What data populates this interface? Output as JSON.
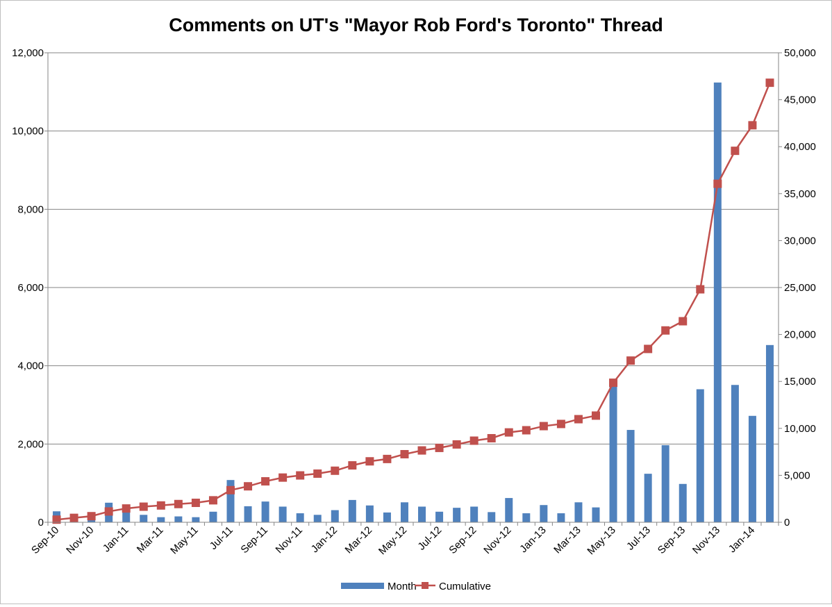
{
  "chart_data": {
    "type": "bar+line",
    "title": "Comments on UT's \"Mayor Rob Ford's Toronto\" Thread",
    "categories": [
      "Sep-10",
      "Oct-10",
      "Nov-10",
      "Dec-10",
      "Jan-11",
      "Feb-11",
      "Mar-11",
      "Apr-11",
      "May-11",
      "Jun-11",
      "Jul-11",
      "Aug-11",
      "Sep-11",
      "Oct-11",
      "Nov-11",
      "Dec-11",
      "Jan-12",
      "Feb-12",
      "Mar-12",
      "Apr-12",
      "May-12",
      "Jun-12",
      "Jul-12",
      "Aug-12",
      "Sep-12",
      "Oct-12",
      "Nov-12",
      "Dec-12",
      "Jan-13",
      "Feb-13",
      "Mar-13",
      "Apr-13",
      "May-13",
      "Jun-13",
      "Jul-13",
      "Aug-13",
      "Sep-13",
      "Oct-13",
      "Nov-13",
      "Dec-13",
      "Jan-14",
      "Feb-14"
    ],
    "tick_labels": [
      "Sep-10",
      "Nov-10",
      "Jan-11",
      "Mar-11",
      "May-11",
      "Jul-11",
      "Sep-11",
      "Nov-11",
      "Jan-12",
      "Mar-12",
      "May-12",
      "Jul-12",
      "Sep-12",
      "Nov-12",
      "Jan-13",
      "Mar-13",
      "May-13",
      "Jul-13",
      "Sep-13",
      "Nov-13",
      "Jan-14"
    ],
    "series": [
      {
        "name": "Month",
        "type": "bar",
        "axis": "left",
        "color": "#4F81BD",
        "values": [
          280,
          190,
          180,
          500,
          320,
          190,
          130,
          150,
          130,
          270,
          1080,
          410,
          530,
          400,
          230,
          190,
          310,
          570,
          430,
          250,
          510,
          400,
          270,
          370,
          400,
          260,
          620,
          230,
          440,
          230,
          510,
          380,
          3500,
          2360,
          1240,
          1970,
          980,
          3400,
          11240,
          3510,
          2720,
          4530
        ]
      },
      {
        "name": "Cumulative",
        "type": "line",
        "axis": "right",
        "color": "#C0504D",
        "values": [
          280,
          470,
          650,
          1150,
          1470,
          1660,
          1790,
          1940,
          2070,
          2340,
          3420,
          3830,
          4360,
          4760,
          4990,
          5180,
          5490,
          6060,
          6490,
          6740,
          7250,
          7650,
          7920,
          8290,
          8690,
          8950,
          9570,
          9800,
          10240,
          10470,
          10980,
          11360,
          14860,
          17220,
          18460,
          20430,
          21410,
          24810,
          36050,
          39560,
          42280,
          46810
        ]
      }
    ],
    "y_left": {
      "range": [
        0,
        12000
      ],
      "ticks": [
        "0",
        "2,000",
        "4,000",
        "6,000",
        "8,000",
        "10,000",
        "12,000"
      ]
    },
    "y_right": {
      "range": [
        0,
        50000
      ],
      "ticks": [
        "0",
        "5,000",
        "10,000",
        "15,000",
        "20,000",
        "25,000",
        "30,000",
        "35,000",
        "40,000",
        "45,000",
        "50,000"
      ]
    },
    "grid": true,
    "legend": "bottom"
  }
}
